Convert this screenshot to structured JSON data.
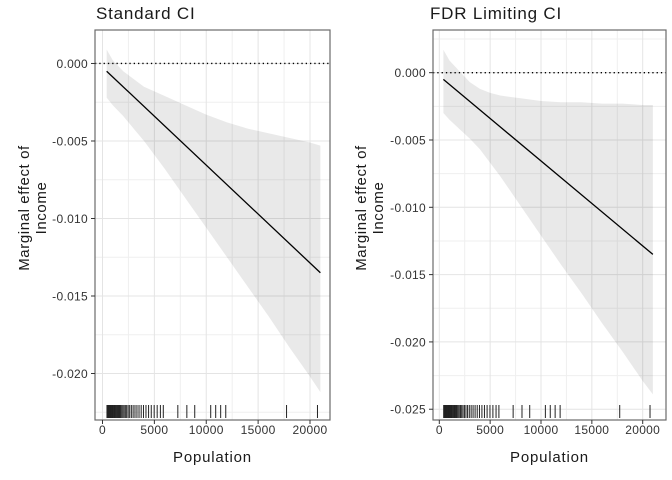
{
  "figure": {
    "background": "#ffffff",
    "text_color": "#1a1a1a",
    "tick_label_color": "#333333",
    "tick_mark_color": "#333333",
    "panel_border_color": "#6b6b6b",
    "panel_background": "#ffffff",
    "grid_major_color": "#e4e4e4",
    "grid_minor_color": "#efefef",
    "ribbon_color": "rgba(0,0,0,0.085)",
    "line_color": "#000000",
    "reference_line_color": "#000000",
    "rug_color": "#222222"
  },
  "chart_data": [
    {
      "type": "line",
      "title": "Standard CI",
      "xlabel": "Population",
      "ylabel": "Marginal effect of\nIncome",
      "legend": "none",
      "grid": "on",
      "xlim": [
        -723,
        21928
      ],
      "ylim": [
        -0.023,
        0.00216
      ],
      "x_tick_values": [
        0,
        5000,
        10000,
        15000,
        20000
      ],
      "x_tick_labels": [
        "0",
        "5000",
        "10000",
        "15000",
        "20000"
      ],
      "y_tick_values": [
        0,
        -0.005,
        -0.01,
        -0.015,
        -0.02
      ],
      "y_tick_labels": [
        "0.000",
        "-0.005",
        "-0.010",
        "-0.015",
        "-0.020"
      ],
      "reference_line_y": 0,
      "line": {
        "x": [
          400,
          21000
        ],
        "y": [
          -0.0005,
          -0.0135
        ]
      },
      "ribbon": {
        "x": [
          400,
          1000,
          2000,
          3000,
          4000,
          5000,
          6000,
          8000,
          10000,
          12000,
          14000,
          16000,
          18000,
          20000,
          21000
        ],
        "upper": [
          0.0009,
          0.0002,
          -0.0005,
          -0.001,
          -0.0015,
          -0.0018,
          -0.0021,
          -0.0027,
          -0.0033,
          -0.0038,
          -0.0042,
          -0.0045,
          -0.0048,
          -0.0051,
          -0.0053
        ],
        "lower": [
          -0.0022,
          -0.0027,
          -0.0034,
          -0.0042,
          -0.005,
          -0.0059,
          -0.0068,
          -0.0087,
          -0.0106,
          -0.0125,
          -0.0144,
          -0.0163,
          -0.0183,
          -0.0202,
          -0.0212
        ]
      },
      "rug_x": [
        430,
        500,
        560,
        620,
        680,
        740,
        800,
        860,
        920,
        980,
        1050,
        1120,
        1200,
        1280,
        1360,
        1450,
        1540,
        1640,
        1740,
        1850,
        1960,
        2080,
        2200,
        2330,
        2470,
        2620,
        2780,
        2950,
        3130,
        3320,
        3520,
        3730,
        3950,
        4190,
        4440,
        4700,
        4980,
        5270,
        5580,
        5860,
        7260,
        8130,
        8890,
        10430,
        10910,
        11390,
        11880,
        17740,
        20720
      ]
    },
    {
      "type": "line",
      "title": "FDR Limiting CI",
      "xlabel": "Population",
      "ylabel": "Marginal effect of\nIncome",
      "legend": "none",
      "grid": "on",
      "xlim": [
        -620,
        22291
      ],
      "ylim": [
        -0.0258,
        0.00317
      ],
      "x_tick_values": [
        0,
        5000,
        10000,
        15000,
        20000
      ],
      "x_tick_labels": [
        "0",
        "5000",
        "10000",
        "15000",
        "20000"
      ],
      "y_tick_values": [
        0,
        -0.005,
        -0.01,
        -0.015,
        -0.02,
        -0.025
      ],
      "y_tick_labels": [
        "0.000",
        "-0.005",
        "-0.010",
        "-0.015",
        "-0.020",
        "-0.025"
      ],
      "reference_line_y": 0,
      "line": {
        "x": [
          400,
          21000
        ],
        "y": [
          -0.0005,
          -0.0135
        ]
      },
      "ribbon": {
        "x": [
          400,
          1000,
          2000,
          3000,
          4000,
          5000,
          6000,
          8000,
          10000,
          12000,
          14000,
          16000,
          18000,
          20000,
          21000
        ],
        "upper": [
          0.0017,
          0.0009,
          0.0001,
          -0.0007,
          -0.0012,
          -0.0015,
          -0.0017,
          -0.0019,
          -0.0021,
          -0.0022,
          -0.0022,
          -0.0023,
          -0.0023,
          -0.0024,
          -0.0024
        ],
        "lower": [
          -0.003,
          -0.0035,
          -0.0042,
          -0.0049,
          -0.0057,
          -0.0067,
          -0.0077,
          -0.0099,
          -0.0121,
          -0.0143,
          -0.0164,
          -0.0186,
          -0.0207,
          -0.0229,
          -0.0239
        ]
      },
      "rug_x": [
        430,
        500,
        560,
        620,
        680,
        740,
        800,
        860,
        920,
        980,
        1050,
        1120,
        1200,
        1280,
        1360,
        1450,
        1540,
        1640,
        1740,
        1850,
        1960,
        2080,
        2200,
        2330,
        2470,
        2620,
        2780,
        2950,
        3130,
        3320,
        3520,
        3730,
        3950,
        4190,
        4440,
        4700,
        4980,
        5270,
        5580,
        5860,
        7260,
        8130,
        8890,
        10430,
        10910,
        11390,
        11880,
        17740,
        20720
      ]
    }
  ]
}
